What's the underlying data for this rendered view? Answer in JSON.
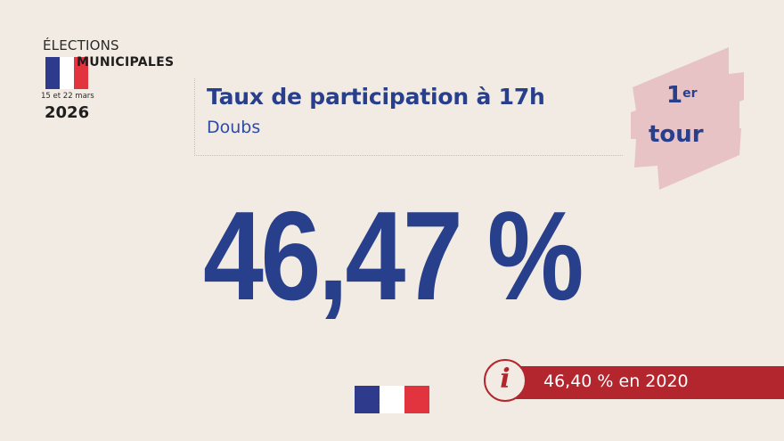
{
  "logo": {
    "elections": "ÉLECTIONS",
    "municipales": "MUNICIPALES",
    "dates": "15 et 22 mars",
    "year": "2026"
  },
  "header": {
    "title": "Taux de participation à 17h",
    "subtitle": "Doubs"
  },
  "round_badge": {
    "number": "1",
    "ordinal_suffix": "er",
    "word": "tour"
  },
  "main": {
    "participation_value": "46,47 %"
  },
  "comparison": {
    "text": "46,40 % en 2020",
    "icon": "info-icon"
  },
  "colors": {
    "background": "#f1ebe3",
    "primary_blue": "#283f8b",
    "accent_red": "#b3262d",
    "badge_pink": "#e8c3c6",
    "flag_blue": "#2e3a8c",
    "flag_white": "#ffffff",
    "flag_red": "#e2343f"
  }
}
